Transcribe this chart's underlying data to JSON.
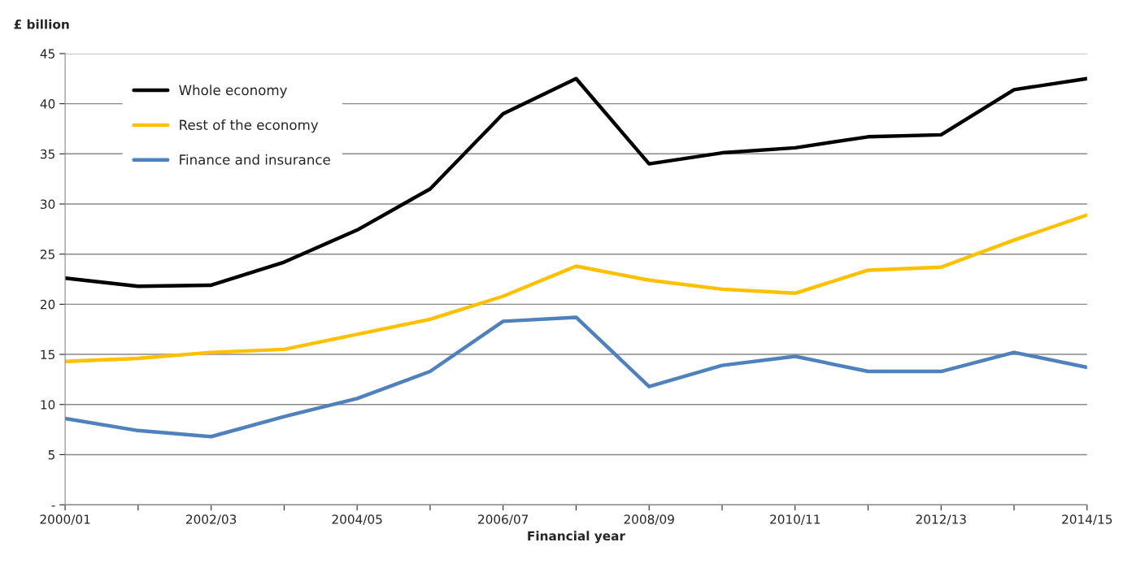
{
  "chart_data": {
    "type": "line",
    "ylabel": "£ billion",
    "xlabel": "Financial year",
    "categories": [
      "2000/01",
      null,
      "2002/03",
      null,
      "2004/05",
      null,
      "2006/07",
      null,
      "2008/09",
      null,
      "2010/11",
      null,
      "2012/13",
      null,
      "2014/15"
    ],
    "series": [
      {
        "name": "Whole economy",
        "color": "#000000",
        "values": [
          22.6,
          21.8,
          21.9,
          24.2,
          27.4,
          31.5,
          39.0,
          42.5,
          34.0,
          35.1,
          35.6,
          36.7,
          36.9,
          41.4,
          42.5
        ]
      },
      {
        "name": "Rest of the economy",
        "color": "#ffc000",
        "values": [
          14.3,
          14.6,
          15.2,
          15.5,
          17.0,
          18.5,
          20.8,
          23.8,
          22.4,
          21.5,
          21.1,
          23.4,
          23.7,
          26.4,
          28.9
        ]
      },
      {
        "name": "Finance and insurance",
        "color": "#4f81bd",
        "values": [
          8.6,
          7.4,
          6.8,
          8.8,
          10.6,
          13.3,
          18.3,
          18.7,
          11.8,
          13.9,
          14.8,
          13.3,
          13.3,
          15.2,
          13.7
        ]
      }
    ],
    "ylim": [
      0,
      45
    ],
    "yticks": [
      {
        "value": 0,
        "label": "-"
      },
      5,
      10,
      15,
      20,
      25,
      30,
      35,
      40,
      45
    ],
    "grid": "y",
    "legend": "top left",
    "marker": "none",
    "line_style": "solid"
  }
}
